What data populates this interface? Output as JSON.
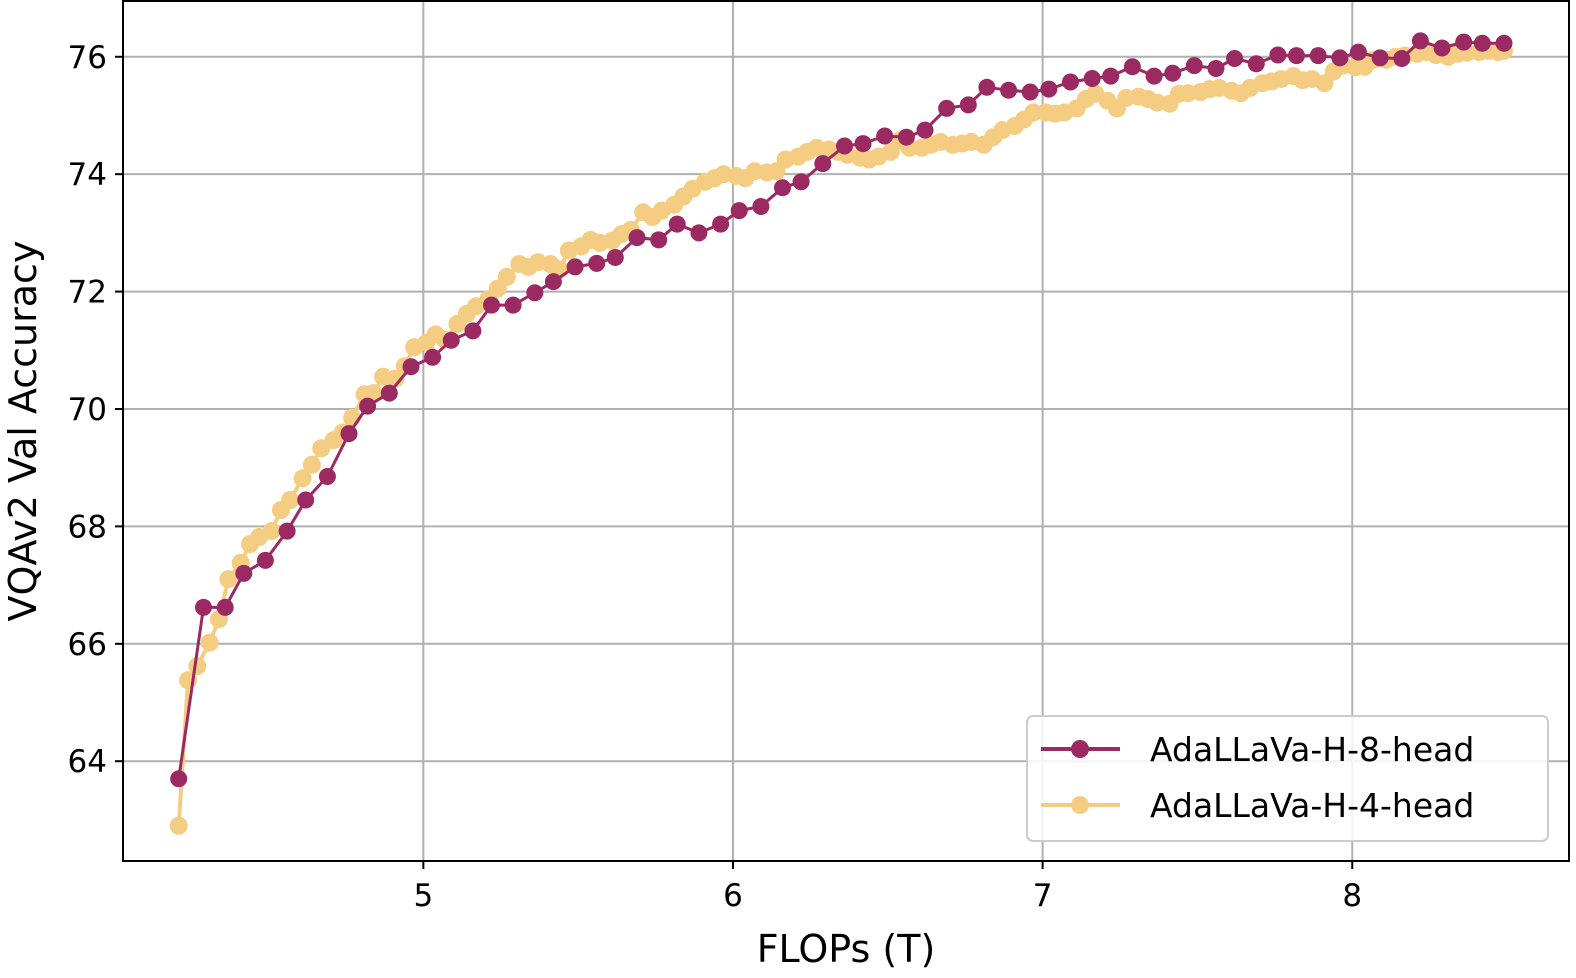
{
  "chart_data": {
    "type": "line",
    "xlabel": "FLOPs (T)",
    "ylabel": "VQAv2 Val Accuracy",
    "xlim": [
      4.03,
      8.7
    ],
    "ylim": [
      62.3,
      76.95
    ],
    "xticks": [
      5,
      6,
      7,
      8
    ],
    "yticks": [
      64,
      66,
      68,
      70,
      72,
      74,
      76
    ],
    "grid": true,
    "legend_position": "lower right",
    "series": [
      {
        "name": "AdaLLaVa-H-8-head",
        "color": "#9b2a62",
        "points": [
          [
            4.21,
            63.7
          ],
          [
            4.29,
            66.62
          ],
          [
            4.36,
            66.62
          ],
          [
            4.42,
            67.2
          ],
          [
            4.49,
            67.42
          ],
          [
            4.56,
            67.92
          ],
          [
            4.62,
            68.45
          ],
          [
            4.69,
            68.85
          ],
          [
            4.76,
            69.58
          ],
          [
            4.82,
            70.05
          ],
          [
            4.89,
            70.27
          ],
          [
            4.96,
            70.72
          ],
          [
            5.03,
            70.88
          ],
          [
            5.09,
            71.17
          ],
          [
            5.16,
            71.33
          ],
          [
            5.22,
            71.77
          ],
          [
            5.29,
            71.77
          ],
          [
            5.36,
            71.98
          ],
          [
            5.42,
            72.17
          ],
          [
            5.49,
            72.42
          ],
          [
            5.56,
            72.48
          ],
          [
            5.62,
            72.58
          ],
          [
            5.69,
            72.92
          ],
          [
            5.76,
            72.88
          ],
          [
            5.82,
            73.15
          ],
          [
            5.89,
            73.0
          ],
          [
            5.96,
            73.15
          ],
          [
            6.02,
            73.38
          ],
          [
            6.09,
            73.45
          ],
          [
            6.16,
            73.77
          ],
          [
            6.22,
            73.87
          ],
          [
            6.29,
            74.18
          ],
          [
            6.36,
            74.48
          ],
          [
            6.42,
            74.52
          ],
          [
            6.49,
            74.65
          ],
          [
            6.56,
            74.63
          ],
          [
            6.62,
            74.75
          ],
          [
            6.69,
            75.12
          ],
          [
            6.76,
            75.18
          ],
          [
            6.82,
            75.48
          ],
          [
            6.89,
            75.43
          ],
          [
            6.96,
            75.4
          ],
          [
            7.02,
            75.45
          ],
          [
            7.09,
            75.57
          ],
          [
            7.16,
            75.63
          ],
          [
            7.22,
            75.67
          ],
          [
            7.29,
            75.83
          ],
          [
            7.36,
            75.67
          ],
          [
            7.42,
            75.72
          ],
          [
            7.49,
            75.85
          ],
          [
            7.56,
            75.8
          ],
          [
            7.62,
            75.97
          ],
          [
            7.69,
            75.88
          ],
          [
            7.76,
            76.03
          ],
          [
            7.82,
            76.02
          ],
          [
            7.89,
            76.02
          ],
          [
            7.96,
            75.98
          ],
          [
            8.02,
            76.08
          ],
          [
            8.09,
            75.98
          ],
          [
            8.16,
            75.97
          ],
          [
            8.22,
            76.27
          ],
          [
            8.29,
            76.15
          ],
          [
            8.36,
            76.25
          ],
          [
            8.42,
            76.23
          ],
          [
            8.49,
            76.23
          ]
        ]
      },
      {
        "name": "AdaLLaVa-H-4-head",
        "color": "#f5cd82",
        "points": [
          [
            4.21,
            62.9
          ],
          [
            4.24,
            65.38
          ],
          [
            4.27,
            65.62
          ],
          [
            4.31,
            66.02
          ],
          [
            4.34,
            66.42
          ],
          [
            4.37,
            67.1
          ],
          [
            4.41,
            67.38
          ],
          [
            4.44,
            67.7
          ],
          [
            4.47,
            67.82
          ],
          [
            4.51,
            67.92
          ],
          [
            4.54,
            68.28
          ],
          [
            4.57,
            68.45
          ],
          [
            4.61,
            68.82
          ],
          [
            4.64,
            69.05
          ],
          [
            4.67,
            69.33
          ],
          [
            4.71,
            69.47
          ],
          [
            4.74,
            69.6
          ],
          [
            4.77,
            69.85
          ],
          [
            4.81,
            70.25
          ],
          [
            4.84,
            70.27
          ],
          [
            4.87,
            70.55
          ],
          [
            4.91,
            70.52
          ],
          [
            4.94,
            70.73
          ],
          [
            4.97,
            71.05
          ],
          [
            5.01,
            71.13
          ],
          [
            5.04,
            71.27
          ],
          [
            5.07,
            71.18
          ],
          [
            5.11,
            71.45
          ],
          [
            5.14,
            71.62
          ],
          [
            5.17,
            71.75
          ],
          [
            5.21,
            71.87
          ],
          [
            5.24,
            72.05
          ],
          [
            5.27,
            72.25
          ],
          [
            5.31,
            72.47
          ],
          [
            5.34,
            72.42
          ],
          [
            5.37,
            72.5
          ],
          [
            5.41,
            72.47
          ],
          [
            5.44,
            72.38
          ],
          [
            5.47,
            72.7
          ],
          [
            5.51,
            72.77
          ],
          [
            5.54,
            72.88
          ],
          [
            5.57,
            72.83
          ],
          [
            5.61,
            72.87
          ],
          [
            5.64,
            72.98
          ],
          [
            5.67,
            73.05
          ],
          [
            5.71,
            73.35
          ],
          [
            5.74,
            73.27
          ],
          [
            5.77,
            73.38
          ],
          [
            5.81,
            73.48
          ],
          [
            5.84,
            73.62
          ],
          [
            5.87,
            73.75
          ],
          [
            5.91,
            73.87
          ],
          [
            5.94,
            73.93
          ],
          [
            5.97,
            74.0
          ],
          [
            6.01,
            73.97
          ],
          [
            6.04,
            73.93
          ],
          [
            6.07,
            74.05
          ],
          [
            6.11,
            74.03
          ],
          [
            6.14,
            74.05
          ],
          [
            6.17,
            74.25
          ],
          [
            6.21,
            74.3
          ],
          [
            6.24,
            74.38
          ],
          [
            6.27,
            74.45
          ],
          [
            6.31,
            74.42
          ],
          [
            6.34,
            74.38
          ],
          [
            6.37,
            74.33
          ],
          [
            6.41,
            74.28
          ],
          [
            6.44,
            74.25
          ],
          [
            6.47,
            74.3
          ],
          [
            6.51,
            74.38
          ],
          [
            6.54,
            74.58
          ],
          [
            6.57,
            74.45
          ],
          [
            6.61,
            74.45
          ],
          [
            6.64,
            74.5
          ],
          [
            6.67,
            74.55
          ],
          [
            6.71,
            74.5
          ],
          [
            6.74,
            74.52
          ],
          [
            6.77,
            74.55
          ],
          [
            6.81,
            74.5
          ],
          [
            6.84,
            74.63
          ],
          [
            6.87,
            74.75
          ],
          [
            6.91,
            74.82
          ],
          [
            6.94,
            74.93
          ],
          [
            6.97,
            75.05
          ],
          [
            7.01,
            75.05
          ],
          [
            7.04,
            75.03
          ],
          [
            7.07,
            75.05
          ],
          [
            7.11,
            75.12
          ],
          [
            7.14,
            75.28
          ],
          [
            7.17,
            75.37
          ],
          [
            7.21,
            75.25
          ],
          [
            7.24,
            75.12
          ],
          [
            7.27,
            75.3
          ],
          [
            7.31,
            75.32
          ],
          [
            7.34,
            75.28
          ],
          [
            7.37,
            75.22
          ],
          [
            7.41,
            75.2
          ],
          [
            7.44,
            75.37
          ],
          [
            7.47,
            75.38
          ],
          [
            7.51,
            75.4
          ],
          [
            7.54,
            75.45
          ],
          [
            7.57,
            75.47
          ],
          [
            7.61,
            75.42
          ],
          [
            7.64,
            75.38
          ],
          [
            7.67,
            75.47
          ],
          [
            7.71,
            75.55
          ],
          [
            7.74,
            75.58
          ],
          [
            7.77,
            75.62
          ],
          [
            7.81,
            75.67
          ],
          [
            7.84,
            75.6
          ],
          [
            7.87,
            75.62
          ],
          [
            7.91,
            75.55
          ],
          [
            7.94,
            75.75
          ],
          [
            7.97,
            75.85
          ],
          [
            8.01,
            75.82
          ],
          [
            8.04,
            75.83
          ],
          [
            8.07,
            75.95
          ],
          [
            8.11,
            75.95
          ],
          [
            8.14,
            76.0
          ],
          [
            8.17,
            76.02
          ],
          [
            8.21,
            76.05
          ],
          [
            8.24,
            76.08
          ],
          [
            8.27,
            76.03
          ],
          [
            8.31,
            76.0
          ],
          [
            8.34,
            76.05
          ],
          [
            8.37,
            76.07
          ],
          [
            8.41,
            76.08
          ],
          [
            8.44,
            76.1
          ],
          [
            8.47,
            76.08
          ],
          [
            8.49,
            76.1
          ]
        ]
      }
    ]
  }
}
